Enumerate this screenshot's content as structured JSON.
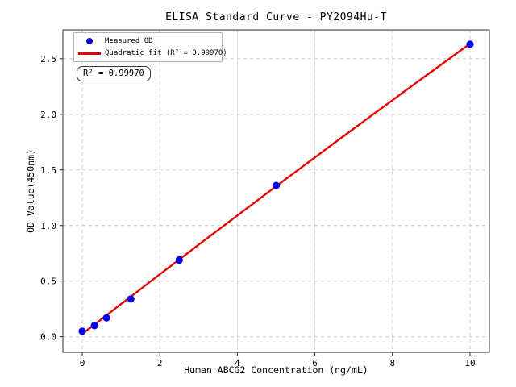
{
  "figure": {
    "background": "#ffffff"
  },
  "chart_data": {
    "type": "scatter",
    "title": "ELISA Standard Curve - PY2094Hu-T",
    "xlabel": "Human ABCG2 Concentration (ng/mL)",
    "ylabel": "OD Value(450nm)",
    "xlim": [
      -0.5,
      10.5
    ],
    "ylim": [
      -0.14,
      2.76
    ],
    "xticks": {
      "values": [
        0,
        2,
        4,
        6,
        8,
        10
      ],
      "labels": [
        "0",
        "2",
        "4",
        "6",
        "8",
        "10"
      ]
    },
    "yticks": {
      "values": [
        0,
        0.5,
        1.0,
        1.5,
        2.0,
        2.5
      ],
      "labels": [
        "0.0",
        "0.5",
        "1.0",
        "1.5",
        "2.0",
        "2.5"
      ]
    },
    "grid": true,
    "grid_style": "dashed",
    "legend": {
      "position": "upper-left",
      "entries": [
        {
          "label": "Measured OD",
          "marker": "circle",
          "color": "#0000f0"
        },
        {
          "label": "Quadratic fit (R² = 0.99970)",
          "marker": "line",
          "color": "#e60000"
        }
      ]
    },
    "annotation": "R² = 0.99970",
    "series": [
      {
        "name": "Measured OD",
        "type": "scatter",
        "color": "#0000f0",
        "x": [
          0,
          0.313,
          0.625,
          1.25,
          2.5,
          5,
          10
        ],
        "y": [
          0.05,
          0.1,
          0.17,
          0.34,
          0.69,
          1.36,
          2.63
        ]
      },
      {
        "name": "Quadratic fit",
        "type": "line",
        "color": "#e60000",
        "fit": {
          "a": 0.025,
          "b": 0.27,
          "c": -0.0009
        },
        "x_range": [
          0,
          10
        ],
        "r_squared": "0.99970"
      }
    ],
    "colors": {
      "grid": "#c9c9c9",
      "spine": "#2b2b2b",
      "text": "#000000"
    }
  }
}
